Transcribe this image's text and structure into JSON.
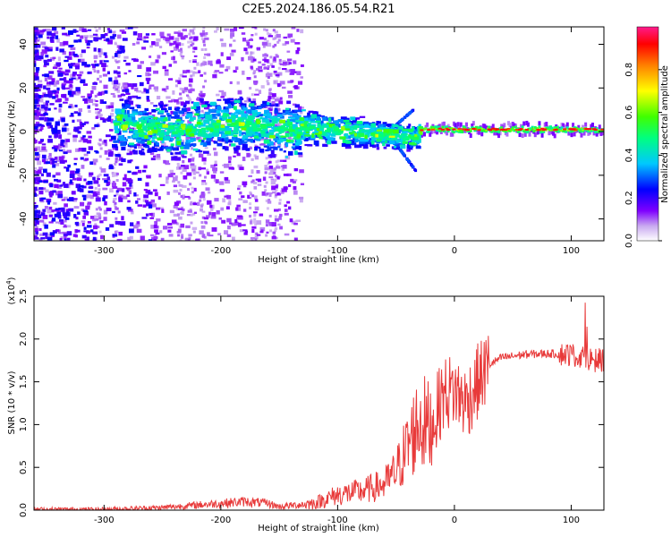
{
  "title": "C2E5.2024.186.05.54.R21",
  "chart_data": [
    {
      "type": "heatmap",
      "xlabel": "Height of straight line (km)",
      "ylabel": "Frequency (Hz)",
      "xlim": [
        -360,
        128
      ],
      "ylim": [
        -50,
        48
      ],
      "xticks": [
        -300,
        -200,
        -100,
        0,
        100
      ],
      "yticks": [
        -40,
        -20,
        0,
        20,
        40
      ],
      "colorbar": {
        "label": "Normalized spectral amplitude",
        "range": [
          0.0,
          1.0
        ],
        "ticks": [
          0.0,
          0.2,
          0.4,
          0.6,
          0.8
        ]
      },
      "features": [
        {
          "name": "strong line near 1 Hz",
          "x_range": [
            -25,
            128
          ],
          "center_hz": 1,
          "amplitude": 0.85
        },
        {
          "name": "broad band",
          "x_range": [
            -260,
            -30
          ],
          "center_hz": 2,
          "amplitude": 0.35
        },
        {
          "name": "diffuse noise",
          "x_range": [
            -360,
            -150
          ],
          "amplitude": 0.15
        }
      ]
    },
    {
      "type": "line",
      "xlabel": "Height of straight line (km)",
      "ylabel": "SNR (10 * v/v)",
      "exponent_label": "(x10",
      "exponent_power": "4",
      "exponent_close": ")",
      "xlim": [
        -360,
        128
      ],
      "ylim": [
        0.0,
        2.5
      ],
      "xticks": [
        -300,
        -200,
        -100,
        0,
        100
      ],
      "yticks": [
        "0.0",
        "0.5",
        "1.0",
        "1.5",
        "2.0",
        "2.5"
      ],
      "ytick_values": [
        0.0,
        0.5,
        1.0,
        1.5,
        2.0,
        2.5
      ],
      "series": [
        {
          "name": "SNR",
          "color": "#e83a3a",
          "x": [
            -360,
            -300,
            -250,
            -230,
            -200,
            -180,
            -160,
            -150,
            -120,
            -100,
            -80,
            -60,
            -50,
            -40,
            -30,
            -20,
            -10,
            0,
            10,
            20,
            30,
            40,
            60,
            80,
            100,
            110,
            120,
            128
          ],
          "y": [
            0.01,
            0.01,
            0.03,
            0.05,
            0.08,
            0.1,
            0.08,
            0.04,
            0.08,
            0.18,
            0.22,
            0.3,
            0.45,
            0.75,
            1.05,
            0.95,
            1.35,
            1.4,
            1.25,
            1.5,
            1.7,
            1.78,
            1.82,
            1.83,
            1.82,
            1.8,
            1.75,
            1.76
          ]
        }
      ]
    }
  ]
}
